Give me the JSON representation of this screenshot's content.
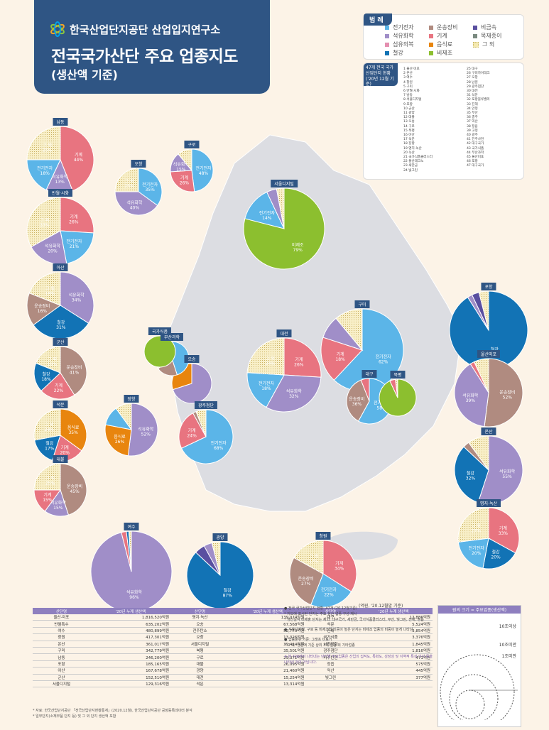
{
  "header": {
    "org": "한국산업단지공단 산업입지연구소",
    "title": "전국국가산단 주요 업종지도",
    "subtitle": "(생산액 기준)"
  },
  "legend": {
    "tag": "범  례",
    "items": [
      {
        "name": "전기전자",
        "color": "#5bb5e8"
      },
      {
        "name": "석유화학",
        "color": "#a08ec8"
      },
      {
        "name": "섬유의복",
        "color": "#e48fb0"
      },
      {
        "name": "철강",
        "color": "#1273b5"
      },
      {
        "name": "운송장비",
        "color": "#b08b80"
      },
      {
        "name": "기계",
        "color": "#e87480"
      },
      {
        "name": "음식료",
        "color": "#e8850e"
      },
      {
        "name": "비제조",
        "color": "#8cbf2f"
      },
      {
        "name": "비금속",
        "color": "#5a4fa0"
      },
      {
        "name": "목재종이",
        "color": "#7a8a80"
      },
      {
        "name": "그 외",
        "color": "#f4e9b0"
      }
    ]
  },
  "complex_list": {
    "tag": "47개 전국 국가산업단지 현황 ('20년 12월 기준)",
    "items": [
      "1 울산·미포",
      "2 온산",
      "3 여수",
      "4 창원",
      "5 구미",
      "6 반월·시화",
      "7 남동",
      "8 서울디지털",
      "9 포항",
      "10 군산",
      "11 광양",
      "12 대불",
      "13 오송",
      "14 구로",
      "15 북평",
      "16 아산",
      "17 석문",
      "18 장항",
      "19 명지·녹산",
      "20 녹산",
      "21 국가식품클러스터",
      "22 울산테크노",
      "23 새만금",
      "24 빛그린",
      "25 대구",
      "26 구미하이테크",
      "27 오창",
      "28 남원",
      "29 광주첨단",
      "30 대전",
      "31 석문",
      "32 포항블루밸리",
      "33 진해",
      "34 안정",
      "35 부산",
      "36 충주",
      "37 익산",
      "38 정읍",
      "39 고정",
      "40 광주",
      "41 진주사천",
      "42 대구국가",
      "43 국가식품",
      "44 부산과학",
      "45 울산미포",
      "46 포항",
      "47 대구국가"
    ]
  },
  "chart_data": {
    "type": "pie",
    "title": "전국국가산단 주요 업종지도 (생산액 기준)",
    "categories": [
      "전기전자",
      "석유화학",
      "섬유의복",
      "철강",
      "운송장비",
      "기계",
      "음식료",
      "비제조",
      "비금속",
      "목재종이",
      "그 외"
    ],
    "pies": [
      {
        "name": "구미",
        "slices": [
          [
            "전기전자",
            62
          ],
          [
            "기계",
            18
          ],
          [
            "석유화학",
            9
          ],
          [
            "그 외",
            11
          ]
        ]
      },
      {
        "name": "서울디지털",
        "slices": [
          [
            "비제조",
            79
          ],
          [
            "전기전자",
            14
          ],
          [
            "석유화학",
            4
          ],
          [
            "그 외",
            3
          ]
        ]
      },
      {
        "name": "포항",
        "slices": [
          [
            "철강",
            91
          ],
          [
            "석유화학",
            2
          ],
          [
            "비금속",
            3
          ],
          [
            "그 외",
            4
          ]
        ]
      },
      {
        "name": "울산미포",
        "slices": [
          [
            "운송장비",
            52
          ],
          [
            "석유화학",
            39
          ],
          [
            "기계",
            2
          ],
          [
            "그 외",
            7
          ]
        ]
      },
      {
        "name": "온산",
        "slices": [
          [
            "석유화학",
            55
          ],
          [
            "철강",
            32
          ],
          [
            "운송장비",
            3
          ],
          [
            "그 외",
            10
          ]
        ]
      },
      {
        "name": "명지·녹산",
        "slices": [
          [
            "기계",
            33
          ],
          [
            "철강",
            20
          ],
          [
            "전기전자",
            20
          ],
          [
            "그 외",
            27
          ]
        ]
      },
      {
        "name": "여수",
        "slices": [
          [
            "석유화학",
            96
          ],
          [
            "기계",
            2
          ],
          [
            "철강",
            1
          ],
          [
            "그 외",
            1
          ]
        ]
      },
      {
        "name": "광양",
        "slices": [
          [
            "철강",
            87
          ],
          [
            "비금속",
            5
          ],
          [
            "석유화학",
            4
          ],
          [
            "그 외",
            4
          ]
        ]
      },
      {
        "name": "창원",
        "slices": [
          [
            "기계",
            34
          ],
          [
            "전기전자",
            22
          ],
          [
            "운송장비",
            27
          ],
          [
            "그 외",
            17
          ]
        ]
      },
      {
        "name": "남동",
        "slices": [
          [
            "기계",
            44
          ],
          [
            "석유화학",
            13
          ],
          [
            "전기전자",
            18
          ],
          [
            "그 외",
            25
          ]
        ]
      },
      {
        "name": "반월·시화",
        "slices": [
          [
            "기계",
            26
          ],
          [
            "전기전자",
            21
          ],
          [
            "석유화학",
            20
          ],
          [
            "그 외",
            33
          ]
        ]
      },
      {
        "name": "아산",
        "slices": [
          [
            "석유화학",
            34
          ],
          [
            "철강",
            31
          ],
          [
            "운송장비",
            16
          ],
          [
            "그 외",
            19
          ]
        ]
      },
      {
        "name": "대전",
        "slices": [
          [
            "기계",
            26
          ],
          [
            "석유화학",
            32
          ],
          [
            "전기전자",
            18
          ],
          [
            "그 외",
            24
          ]
        ]
      },
      {
        "name": "군산",
        "slices": [
          [
            "운송장비",
            41
          ],
          [
            "기계",
            22
          ],
          [
            "철강",
            18
          ],
          [
            "그 외",
            19
          ]
        ]
      },
      {
        "name": "석문",
        "slices": [
          [
            "음식료",
            35
          ],
          [
            "기계",
            20
          ],
          [
            "철강",
            17
          ],
          [
            "그 외",
            28
          ]
        ]
      },
      {
        "name": "장항",
        "slices": [
          [
            "석유화학",
            52
          ],
          [
            "음식료",
            26
          ],
          [
            "전기전자",
            12
          ],
          [
            "그 외",
            10
          ]
        ]
      },
      {
        "name": "대불",
        "slices": [
          [
            "운송장비",
            45
          ],
          [
            "석유화학",
            15
          ],
          [
            "기계",
            15
          ],
          [
            "그 외",
            25
          ]
        ]
      },
      {
        "name": "광주첨단",
        "slices": [
          [
            "전기전자",
            68
          ],
          [
            "기계",
            24
          ],
          [
            "운송장비",
            2
          ],
          [
            "그 외",
            6
          ]
        ]
      },
      {
        "name": "대구",
        "slices": [
          [
            "전기전자",
            58
          ],
          [
            "운송장비",
            36
          ],
          [
            "기계",
            6
          ]
        ]
      },
      {
        "name": "오송",
        "slices": [
          [
            "석유화학",
            70
          ],
          [
            "음식료",
            30
          ]
        ]
      },
      {
        "name": "오창",
        "slices": [
          [
            "전기전자",
            35
          ],
          [
            "석유화학",
            40
          ],
          [
            "그 외",
            25
          ]
        ]
      },
      {
        "name": "구로",
        "slices": [
          [
            "전기전자",
            48
          ],
          [
            "기계",
            26
          ],
          [
            "석유화학",
            15
          ],
          [
            "그 외",
            11
          ]
        ]
      },
      {
        "name": "북평",
        "slices": [
          [
            "비제조",
            93
          ],
          [
            "기계",
            5
          ],
          [
            "그 외",
            2
          ]
        ]
      },
      {
        "name": "부산과학",
        "slices": [
          [
            "전기전자",
            45
          ],
          [
            "운송장비",
            20
          ],
          [
            "그 외",
            35
          ]
        ]
      },
      {
        "name": "국가식품",
        "slices": [
          [
            "비제조",
            100
          ]
        ]
      }
    ],
    "scale": [
      "10조이상",
      "10조미만",
      "1조미만"
    ]
  },
  "table": {
    "unit_note": "(억원, '20.12월말 기준)",
    "headers": [
      "산단명",
      "'20년 누계 생산액",
      "산단명",
      "'20년 누계 생산액",
      "산단명",
      "'20년 누계 생산액"
    ],
    "rows": [
      [
        "울산·미포",
        "1,816,520억원",
        "명지·녹산",
        "139,074억원",
        "대구",
        "12,886억원"
      ],
      [
        "반월특수",
        "635,202억원",
        "오송",
        "67,568억원",
        "석문",
        "5,524억원"
      ],
      [
        "여수",
        "480,899억원",
        "전주탄소",
        "52,770억원",
        "진해",
        "3,854억원"
      ],
      [
        "창원",
        "417,301억원",
        "오창",
        "13,326억원",
        "국가식품",
        "3,376억원"
      ],
      [
        "온산",
        "361,017억원",
        "서울디지털",
        "39,414억원",
        "서천장항",
        "1,845억원"
      ],
      [
        "구미",
        "342,779억원",
        "북평",
        "35,501억원",
        "광주첨단",
        "1,816억원"
      ],
      [
        "남동",
        "246,200억원",
        "구로",
        "29,371억원",
        "파주탄현",
        "471억원"
      ],
      [
        "포항",
        "185,165억원",
        "대불",
        "26,095억원",
        "정읍",
        "575억원"
      ],
      [
        "아산",
        "167,678억원",
        "광양",
        "21,460억원",
        "익산",
        "445억원"
      ],
      [
        "군산",
        "152,510억원",
        "대전",
        "15,254억원",
        "빛그린",
        "377억원"
      ],
      [
        "서울디지털",
        "129,316억원",
        "석문",
        "13,314억원",
        "",
        ""
      ]
    ],
    "sources": [
      "* 자료: 한국산업단지공단 「전국산업단지현황통계」(2020.12월), 한국산업단지공단 공장등록데이터 분석",
      "* 일부단지(소재부품 단지 등) 및 그 외 단지 생산액 포함"
    ]
  },
  "notes": [
    "● 전국 국가산업단지 현황: 47개 (20.12월기준)",
    "  * 지도에 표시된 단지는 주요 생산 업종 구성 제시",
    "  * 생산실적 미제출 단지는 제외: 대구국가, 새만금, 국가식품클러스터, 부산, 빛그린, 진해, 정읍",
    "● 서울디지털, 구로 등 비제조업 비중이 높은 단지는 비제조 업종의 비중이 높게 나타남",
    "● 업종분류 기준: 그래프 미표기",
    "  * 그 외: 생산액 기준 상위 3개 업종 외 기타업종",
    "※ 본 자료에서 나타내는 단지별 주요업종은 산업의 집적도, 특화도, 성장성 및 지역적 특성 의지 등을 나타낸 것이 아닙니다."
  ],
  "scale_box": {
    "title": "원의 크기 = 주요업종(생산액)",
    "labels": [
      "10조이상",
      "10조미만",
      "1조미만"
    ]
  }
}
